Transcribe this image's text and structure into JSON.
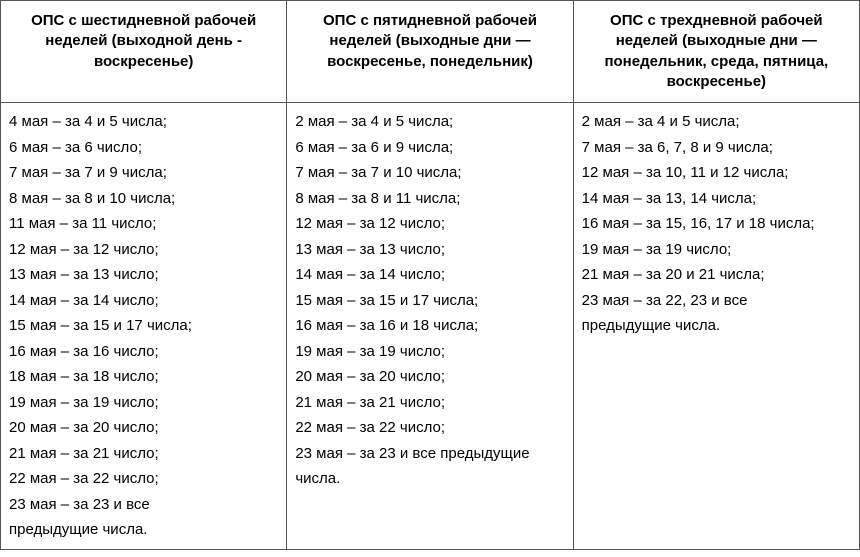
{
  "table": {
    "columns": [
      {
        "header": "ОПС с шестидневной рабочей неделей (выходной день - воскресенье)"
      },
      {
        "header": "ОПС с пятидневной рабочей неделей (выходные дни — воскресенье, понедельник)"
      },
      {
        "header": "ОПС с трехдневной рабочей неделей (выходные дни — понедельник, среда, пятница, воскресенье)"
      }
    ],
    "rows": [
      [
        "4 мая – за 4 и 5 числа;",
        "6 мая – за 6 число;",
        "7 мая – за 7 и 9 числа;",
        "8 мая – за 8 и 10 числа;",
        "11 мая – за 11 число;",
        "12 мая – за 12 число;",
        "13 мая – за 13  число;",
        "14 мая – за 14 число;",
        "15 мая – за 15 и 17 числа;",
        "16 мая – за 16 число;",
        "18 мая – за 18 число;",
        "19 мая – за 19 число;",
        "20 мая – за 20 число;",
        "21 мая – за 21 число;",
        "22 мая – за 22 число;",
        "23 мая – за 23 и все",
        "предыдущие числа."
      ],
      [
        "2 мая – за 4 и 5 числа;",
        "6 мая – за 6 и 9 числа;",
        "7 мая – за 7  и 10 числа;",
        "8 мая – за 8 и 11 числа;",
        "12 мая – за 12 число;",
        "13 мая – за 13 число;",
        "14 мая – за 14 число;",
        "15 мая – за 15 и 17 числа;",
        "16 мая – за 16 и 18 числа;",
        "19 мая – за 19 число;",
        "20 мая – за 20 число;",
        "21 мая – за 21 число;",
        "22 мая – за 22 число;",
        "23 мая – за 23 и все предыдущие",
        "числа."
      ],
      [
        "2 мая – за 4 и 5 числа;",
        "7 мая – за 6, 7, 8 и 9 числа;",
        "12 мая – за 10, 11 и 12 числа;",
        "14 мая – за 13, 14 числа;",
        "16 мая – за 15, 16, 17 и 18 числа;",
        "19 мая – за 19 число;",
        "21 мая – за 20 и 21 числа;",
        "23 мая – за 22, 23 и все",
        "предыдущие числа."
      ]
    ],
    "border_color": "#555555",
    "background_color": "#ffffff",
    "text_color": "#000000",
    "header_fontsize": 15,
    "cell_fontsize": 15,
    "font_family": "Arial"
  }
}
